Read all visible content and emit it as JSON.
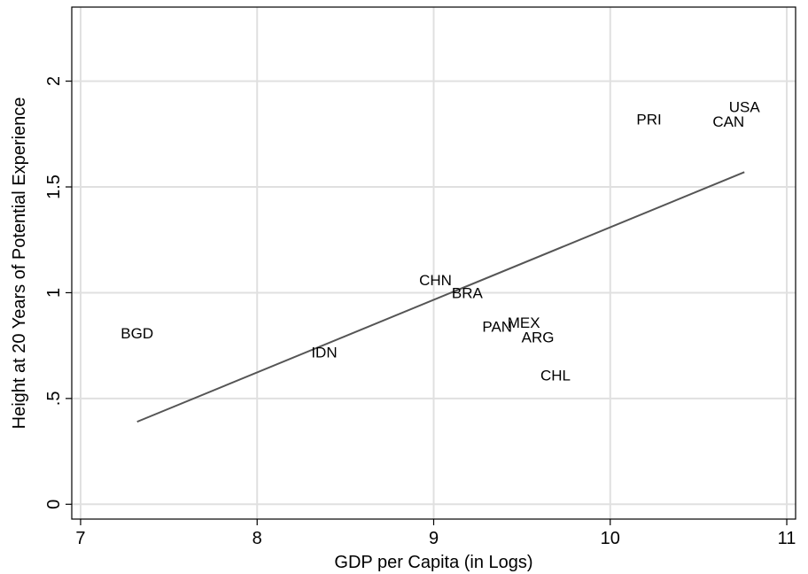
{
  "chart_data": {
    "type": "scatter",
    "title": "",
    "xlabel": "GDP per Capita (in Logs)",
    "ylabel": "Height at 20 Years of Potential Experience",
    "xlim": [
      6.95,
      11.05
    ],
    "ylim": [
      -0.07,
      2.35
    ],
    "xticks": [
      7,
      8,
      9,
      10,
      11
    ],
    "xtick_labels": [
      "7",
      "8",
      "9",
      "10",
      "11"
    ],
    "yticks": [
      0,
      0.5,
      1,
      1.5,
      2
    ],
    "ytick_labels": [
      "0",
      ".5",
      "1",
      "1.5",
      "2"
    ],
    "grid": true,
    "legend": "none",
    "marker_style": "country-code text labels",
    "points": [
      {
        "label": "BGD",
        "x": 7.32,
        "y": 0.81
      },
      {
        "label": "IDN",
        "x": 8.38,
        "y": 0.72
      },
      {
        "label": "CHN",
        "x": 9.01,
        "y": 1.06
      },
      {
        "label": "BRA",
        "x": 9.19,
        "y": 1.0
      },
      {
        "label": "PAN",
        "x": 9.36,
        "y": 0.84
      },
      {
        "label": "MEX",
        "x": 9.51,
        "y": 0.86
      },
      {
        "label": "ARG",
        "x": 9.59,
        "y": 0.79
      },
      {
        "label": "CHL",
        "x": 9.69,
        "y": 0.61
      },
      {
        "label": "PRI",
        "x": 10.22,
        "y": 1.82
      },
      {
        "label": "USA",
        "x": 10.76,
        "y": 1.88
      },
      {
        "label": "CAN",
        "x": 10.67,
        "y": 1.81
      }
    ],
    "fit_line": {
      "x": [
        7.32,
        10.76
      ],
      "y": [
        0.39,
        1.57
      ]
    },
    "colors": {
      "fit_line": "#555555",
      "grid": "#e0e0e0",
      "axis": "#000000",
      "text": "#000000"
    }
  }
}
